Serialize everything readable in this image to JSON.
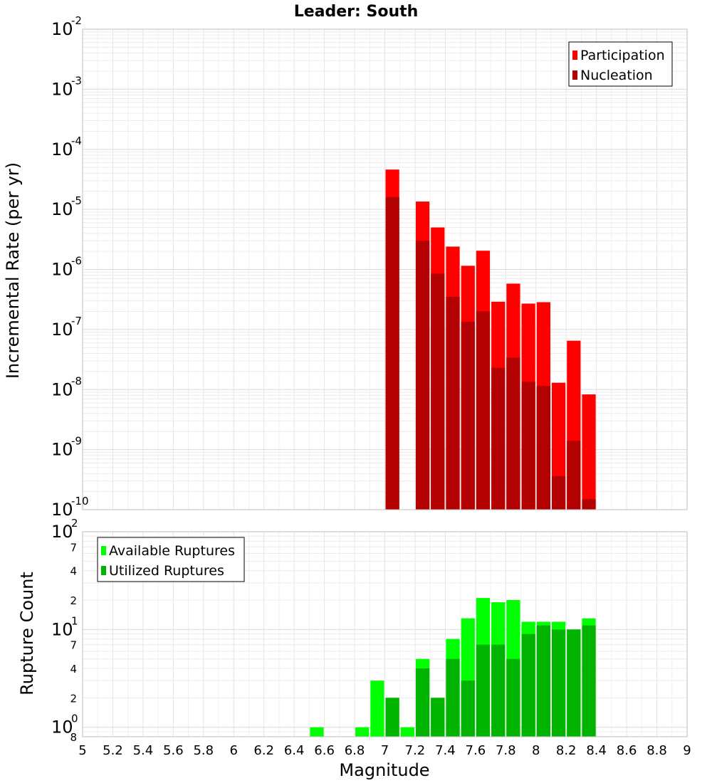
{
  "chart_data": [
    {
      "type": "bar",
      "title": "Leader: South",
      "xlabel": "",
      "ylabel": "Incremental Rate (per yr)",
      "yscale": "log",
      "xlim": [
        5,
        9
      ],
      "ylim": [
        1e-10,
        0.01
      ],
      "y_ticks": [
        {
          "base": "10",
          "exp": "-10",
          "value": 1e-10
        },
        {
          "base": "10",
          "exp": "-9",
          "value": 1e-09
        },
        {
          "base": "10",
          "exp": "-8",
          "value": 1e-08
        },
        {
          "base": "10",
          "exp": "-7",
          "value": 1e-07
        },
        {
          "base": "10",
          "exp": "-6",
          "value": 1e-06
        },
        {
          "base": "10",
          "exp": "-5",
          "value": 1e-05
        },
        {
          "base": "10",
          "exp": "-4",
          "value": 0.0001
        },
        {
          "base": "10",
          "exp": "-3",
          "value": 0.001
        },
        {
          "base": "10",
          "exp": "-2",
          "value": 0.01
        }
      ],
      "grid": true,
      "legend_position": "top-right",
      "bin_width": 0.1,
      "x": [
        7.05,
        7.25,
        7.35,
        7.45,
        7.55,
        7.65,
        7.75,
        7.85,
        7.95,
        8.05,
        8.15,
        8.25,
        8.35
      ],
      "series": [
        {
          "name": "Participation",
          "color": "#ff0000",
          "values": [
            4.6e-05,
            1.35e-05,
            5e-06,
            2.4e-06,
            1.15e-06,
            2.05e-06,
            2.9e-07,
            5.8e-07,
            2.7e-07,
            2.85e-07,
            1.3e-08,
            6.5e-08,
            8.3e-09
          ]
        },
        {
          "name": "Nucleation",
          "color": "#b30000",
          "values": [
            1.6e-05,
            3e-06,
            8.5e-07,
            3.5e-07,
            1.35e-07,
            2e-07,
            2.3e-08,
            3.4e-08,
            1.35e-08,
            1.15e-08,
            3.6e-10,
            1.4e-09,
            1.5e-10
          ]
        }
      ]
    },
    {
      "type": "bar",
      "title": "",
      "xlabel": "Magnitude",
      "ylabel": "Rupture Count",
      "yscale": "log",
      "xlim": [
        5,
        9
      ],
      "ylim": [
        0.8,
        100
      ],
      "y_ticks": [
        {
          "base": "10",
          "exp": "0",
          "value": 1
        },
        {
          "base": "10",
          "exp": "1",
          "value": 10
        },
        {
          "base": "10",
          "exp": "2",
          "value": 100
        }
      ],
      "y_minor_ticks": [
        {
          "label": "8",
          "value": 0.8
        },
        {
          "label": "2",
          "value": 2
        },
        {
          "label": "4",
          "value": 4
        },
        {
          "label": "7",
          "value": 7
        },
        {
          "label": "2",
          "value": 20
        },
        {
          "label": "4",
          "value": 40
        },
        {
          "label": "7",
          "value": 70
        }
      ],
      "x_ticks": [
        "5",
        "5.2",
        "5.4",
        "5.6",
        "5.8",
        "6",
        "6.2",
        "6.4",
        "6.6",
        "6.8",
        "7",
        "7.2",
        "7.4",
        "7.6",
        "7.8",
        "8",
        "8.2",
        "8.4",
        "8.6",
        "8.8",
        "9"
      ],
      "grid": true,
      "legend_position": "top-left",
      "bin_width": 0.1,
      "x": [
        6.55,
        6.85,
        6.95,
        7.05,
        7.15,
        7.25,
        7.35,
        7.45,
        7.55,
        7.65,
        7.75,
        7.85,
        7.95,
        8.05,
        8.15,
        8.25,
        8.35
      ],
      "series": [
        {
          "name": "Available Ruptures",
          "color": "#00ff00",
          "values": [
            1,
            1,
            3,
            2,
            1,
            5,
            2,
            8,
            13,
            21,
            19,
            20,
            12,
            12,
            12,
            10,
            13
          ]
        },
        {
          "name": "Utilized Ruptures",
          "color": "#00b300",
          "values": [
            0,
            0,
            0,
            2,
            0,
            4,
            2,
            5,
            3,
            7,
            7,
            5,
            9,
            11,
            10,
            10,
            11
          ]
        }
      ]
    }
  ]
}
